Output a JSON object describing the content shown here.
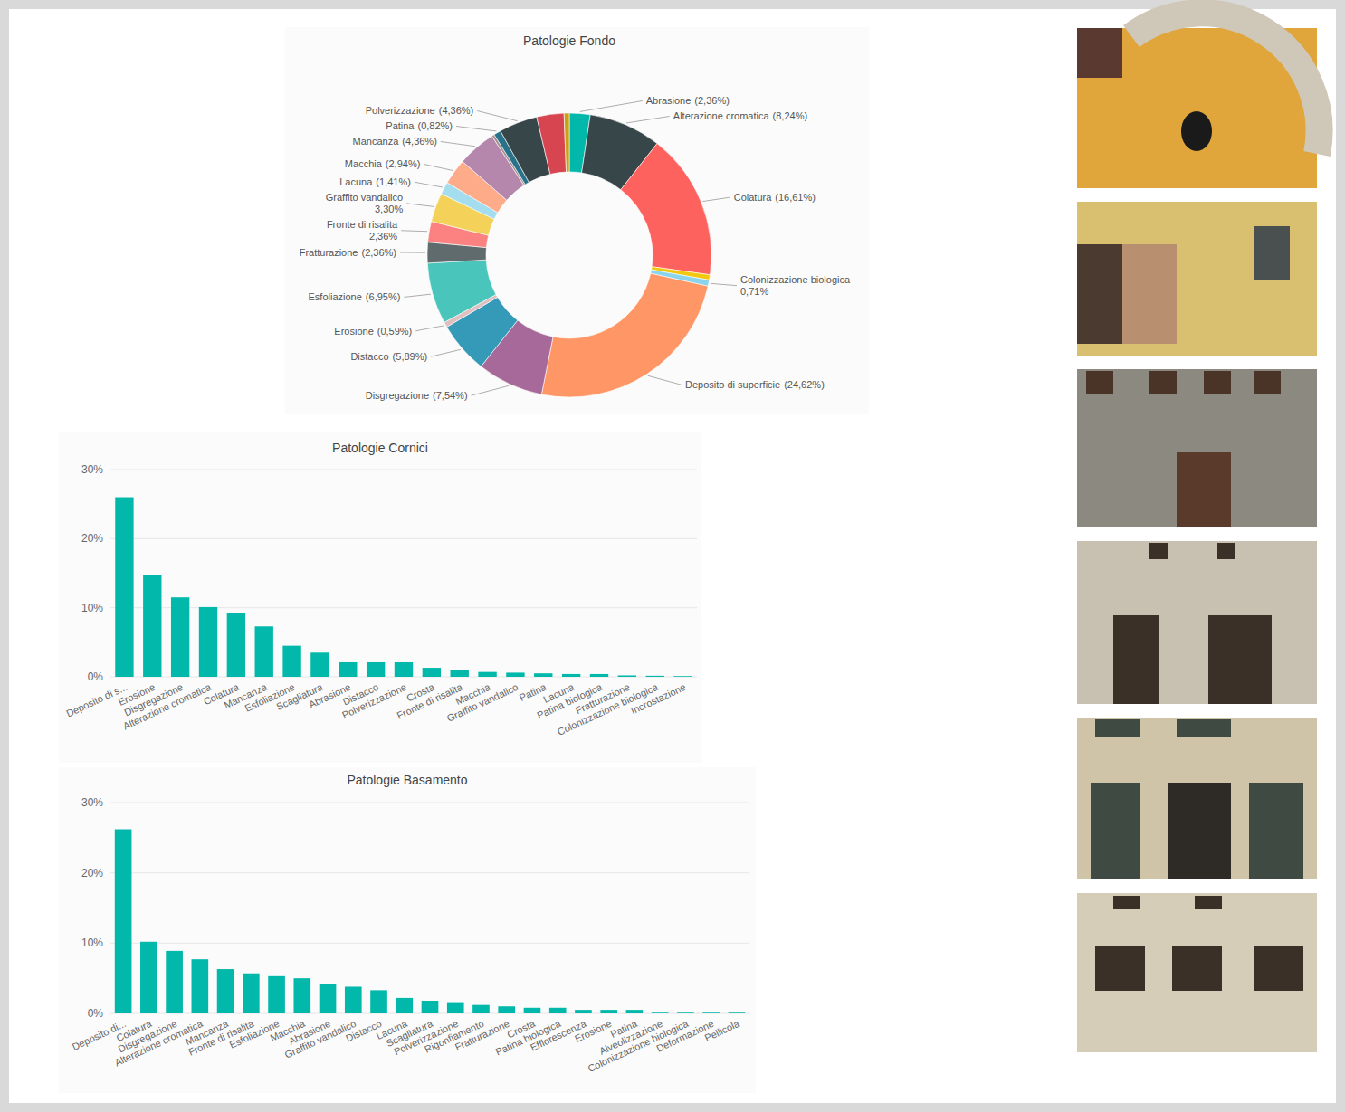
{
  "chart_data": [
    {
      "type": "donut",
      "title": "Patologie Fondo",
      "categories": [
        "Abrasione",
        "Alterazione cromatica",
        "Colatura",
        null,
        "Colonizzazione biologica",
        "Deposito di superficie",
        "Disgregazione",
        "Distacco",
        "Erosione",
        "Esfoliazione",
        "Fratturazione",
        "Fronte di risalita",
        "Graffito vandalico",
        "Lacuna",
        "Macchia",
        "Mancanza",
        null,
        "Patina",
        "Polverizzazione",
        null,
        null
      ],
      "values": [
        2.36,
        8.24,
        16.61,
        0.59,
        0.71,
        24.62,
        7.54,
        5.89,
        0.59,
        6.95,
        2.36,
        2.36,
        3.3,
        1.41,
        2.94,
        4.36,
        0.3,
        0.82,
        4.36,
        3.1,
        0.59
      ],
      "value_labels": [
        "(2,36%)",
        "(8,24%)",
        "(16,61%)",
        null,
        "0,71%",
        "(24,62%)",
        "(7,54%)",
        "(5,89%)",
        "(0,59%)",
        "(6,95%)",
        "(2,36%)",
        "2,36%",
        "3,30%",
        "(1,41%)",
        "(2,94%)",
        "(4,36%)",
        null,
        "(0,82%)",
        "(4,36%)",
        null,
        null
      ],
      "colors": [
        "#01b8aa",
        "#374649",
        "#fd625e",
        "#f2c80f",
        "#8ad4eb",
        "#fe9666",
        "#a66999",
        "#3599b8",
        "#dfbfbf",
        "#4ac5bb",
        "#5f6b6d",
        "#fb8281",
        "#f4d25a",
        "#a4ddee",
        "#fdab89",
        "#b687ac",
        "#a78f8f",
        "#28738a",
        "#374649",
        "#d64550",
        "#c8a214"
      ]
    },
    {
      "type": "bar",
      "title": "Patologie Cornici",
      "categories": [
        "Deposito di s...",
        "Erosione",
        "Disgregazione",
        "Alterazione cromatica",
        "Colatura",
        "Mancanza",
        "Esfoliazione",
        "Scagliatura",
        "Abrasione",
        "Distacco",
        "Polverizzazione",
        "Crosta",
        "Fronte di risalita",
        "Macchia",
        "Graffito vandalico",
        "Patina",
        "Lacuna",
        "Patina biologica",
        "Fratturazione",
        "Colonizzazione biologica",
        "Incrostazione"
      ],
      "values": [
        26.0,
        14.7,
        11.5,
        10.1,
        9.2,
        7.3,
        4.5,
        3.5,
        2.1,
        2.1,
        2.1,
        1.3,
        1.0,
        0.7,
        0.6,
        0.5,
        0.4,
        0.4,
        0.2,
        0.15,
        0.1
      ],
      "color": "#01b8aa",
      "ylim": [
        0,
        30
      ],
      "yticks": [
        {
          "value": 0,
          "label": "0%"
        },
        {
          "value": 10,
          "label": "10%"
        },
        {
          "value": 20,
          "label": "20%"
        },
        {
          "value": 30,
          "label": "30%"
        }
      ],
      "grid": true
    },
    {
      "type": "bar",
      "title": "Patologie Basamento",
      "categories": [
        "Deposito di...",
        "Colatura",
        "Disgregazione",
        "Alterazione cromatica",
        "Mancanza",
        "Fronte di risalita",
        "Esfoliazione",
        "Macchia",
        "Abrasione",
        "Graffito vandalico",
        "Distacco",
        "Lacuna",
        "Scagliatura",
        "Polverizzazione",
        "Rigonfiamento",
        "Fratturazione",
        "Crosta",
        "Patina biologica",
        "Efflorescenza",
        "Erosione",
        "Patina",
        "Alveolizzazione",
        "Colonizzazione biologica",
        "Deformazione",
        "Pellicola"
      ],
      "values": [
        26.2,
        10.2,
        8.9,
        7.7,
        6.3,
        5.7,
        5.3,
        5.0,
        4.2,
        3.8,
        3.3,
        2.2,
        1.8,
        1.6,
        1.2,
        1.0,
        0.8,
        0.8,
        0.5,
        0.5,
        0.5,
        0.1,
        0.1,
        0.1,
        0.1
      ],
      "color": "#01b8aa",
      "ylim": [
        0,
        30
      ],
      "yticks": [
        {
          "value": 0,
          "label": "0%"
        },
        {
          "value": 10,
          "label": "10%"
        },
        {
          "value": 20,
          "label": "20%"
        },
        {
          "value": 30,
          "label": "30%"
        }
      ],
      "grid": true
    }
  ]
}
